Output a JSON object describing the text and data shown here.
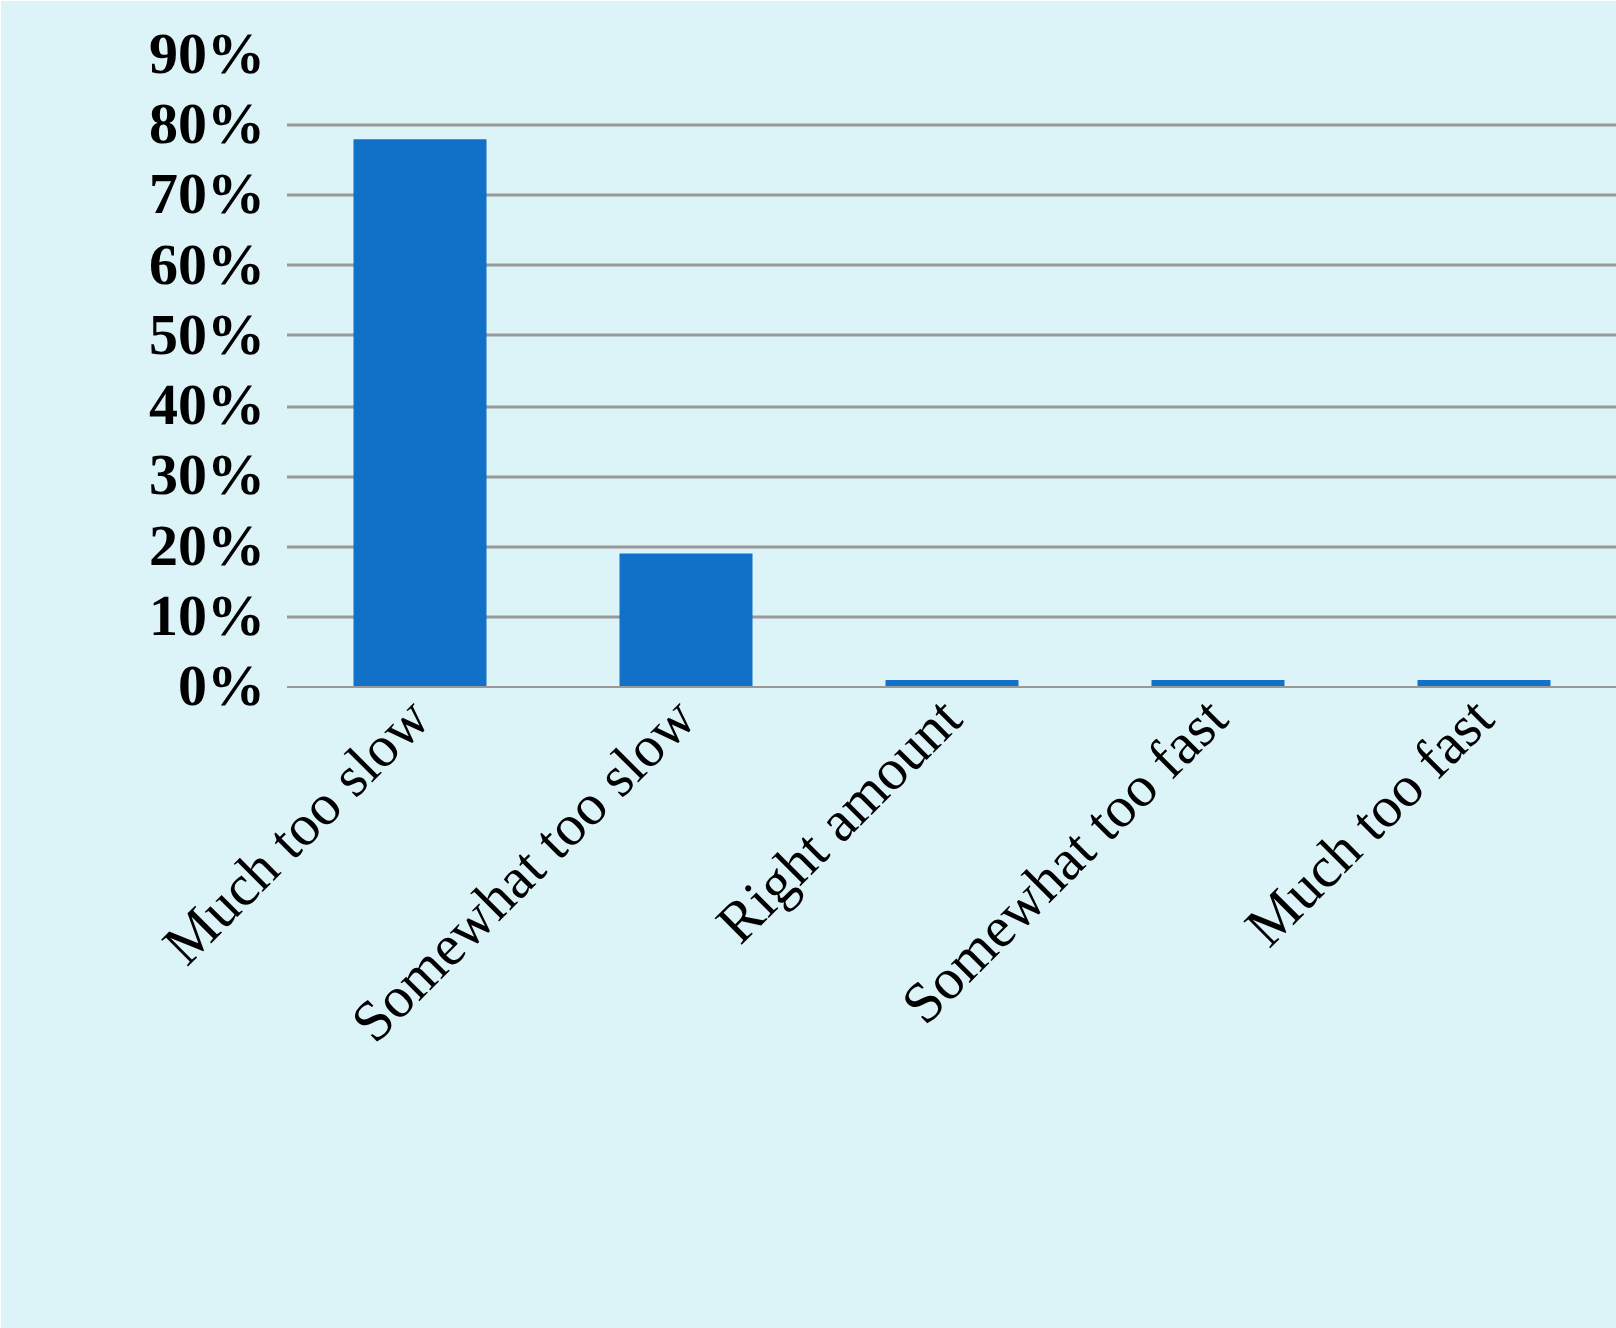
{
  "chart_data": {
    "type": "bar",
    "categories": [
      "Much too slow",
      "Somewhat too slow",
      "Right amount",
      "Somewhat too fast",
      "Much too fast"
    ],
    "values": [
      78,
      19,
      1,
      1,
      1
    ],
    "color": "#1170c8",
    "ylim": [
      0,
      90
    ],
    "yticks": [
      {
        "value": 0,
        "label": "0%"
      },
      {
        "value": 10,
        "label": "10%"
      },
      {
        "value": 20,
        "label": "20%"
      },
      {
        "value": 30,
        "label": "30%"
      },
      {
        "value": 40,
        "label": "40%"
      },
      {
        "value": 50,
        "label": "50%"
      },
      {
        "value": 60,
        "label": "60%"
      },
      {
        "value": 70,
        "label": "70%"
      },
      {
        "value": 80,
        "label": "80%"
      },
      {
        "value": 90,
        "label": "90%"
      }
    ],
    "grid": "y"
  }
}
